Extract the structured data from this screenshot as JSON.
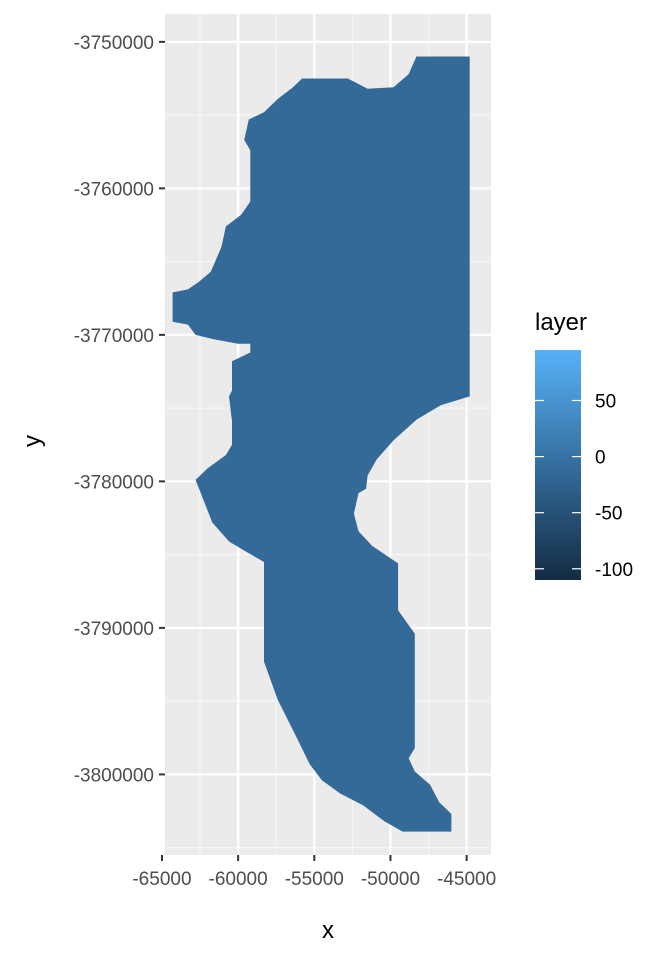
{
  "chart_data": {
    "type": "heatmap",
    "title": "",
    "xlabel": "x",
    "ylabel": "y",
    "xlim": [
      -64800,
      -43400
    ],
    "ylim": [
      -3805500,
      -3748100
    ],
    "x_ticks": [
      -65000,
      -60000,
      -55000,
      -50000,
      -45000
    ],
    "x_tick_labels": [
      "-65000",
      "-60000",
      "-55000",
      "-50000",
      "-45000"
    ],
    "y_ticks": [
      -3750000,
      -3760000,
      -3770000,
      -3780000,
      -3790000,
      -3800000
    ],
    "y_tick_labels": [
      "-3750000",
      "-3760000",
      "-3770000",
      "-3780000",
      "-3790000",
      "-3800000"
    ],
    "grid": true,
    "panel_background": "#ebebeb",
    "fill_color": "#336a98",
    "legend": {
      "title": "layer",
      "position": "right",
      "colors": [
        "#132b43",
        "#56b1f7"
      ],
      "range": [
        -110,
        95
      ],
      "breaks": [
        50,
        0,
        -50,
        -100
      ],
      "labels": [
        "50",
        "0",
        "-50",
        "-100"
      ]
    },
    "region_outline": [
      [
        -55800,
        -3752500
      ],
      [
        -52800,
        -3752500
      ],
      [
        -51500,
        -3753200
      ],
      [
        -49800,
        -3753100
      ],
      [
        -48800,
        -3752200
      ],
      [
        -48300,
        -3751000
      ],
      [
        -44800,
        -3751000
      ],
      [
        -44800,
        -3774200
      ],
      [
        -46700,
        -3774800
      ],
      [
        -48300,
        -3775800
      ],
      [
        -49800,
        -3777200
      ],
      [
        -50900,
        -3778500
      ],
      [
        -51500,
        -3779600
      ],
      [
        -51600,
        -3780500
      ],
      [
        -52100,
        -3780800
      ],
      [
        -52400,
        -3782200
      ],
      [
        -52100,
        -3783400
      ],
      [
        -51200,
        -3784400
      ],
      [
        -49500,
        -3785600
      ],
      [
        -49500,
        -3788800
      ],
      [
        -48400,
        -3790400
      ],
      [
        -48400,
        -3798200
      ],
      [
        -48800,
        -3798900
      ],
      [
        -48400,
        -3799800
      ],
      [
        -47400,
        -3800700
      ],
      [
        -46800,
        -3801900
      ],
      [
        -46000,
        -3802700
      ],
      [
        -46000,
        -3803900
      ],
      [
        -49200,
        -3803900
      ],
      [
        -50400,
        -3803200
      ],
      [
        -51800,
        -3802100
      ],
      [
        -53300,
        -3801300
      ],
      [
        -54500,
        -3800400
      ],
      [
        -55300,
        -3799300
      ],
      [
        -56200,
        -3797400
      ],
      [
        -57400,
        -3794900
      ],
      [
        -58300,
        -3792300
      ],
      [
        -58300,
        -3785500
      ],
      [
        -59300,
        -3784900
      ],
      [
        -60600,
        -3784100
      ],
      [
        -61700,
        -3782800
      ],
      [
        -62600,
        -3780400
      ],
      [
        -62800,
        -3779900
      ],
      [
        -62000,
        -3779100
      ],
      [
        -60800,
        -3778200
      ],
      [
        -60400,
        -3777500
      ],
      [
        -60400,
        -3775900
      ],
      [
        -60600,
        -3774200
      ],
      [
        -60400,
        -3773800
      ],
      [
        -60400,
        -3771800
      ],
      [
        -59200,
        -3771200
      ],
      [
        -59200,
        -3770600
      ],
      [
        -60000,
        -3770600
      ],
      [
        -61600,
        -3770300
      ],
      [
        -62800,
        -3770000
      ],
      [
        -63300,
        -3769300
      ],
      [
        -64300,
        -3769100
      ],
      [
        -64300,
        -3767100
      ],
      [
        -63300,
        -3766900
      ],
      [
        -62600,
        -3766400
      ],
      [
        -61800,
        -3765700
      ],
      [
        -61100,
        -3764000
      ],
      [
        -60800,
        -3762600
      ],
      [
        -59800,
        -3761800
      ],
      [
        -59200,
        -3760900
      ],
      [
        -59200,
        -3757400
      ],
      [
        -59600,
        -3756700
      ],
      [
        -59300,
        -3755300
      ],
      [
        -58300,
        -3754800
      ],
      [
        -57400,
        -3753900
      ],
      [
        -56400,
        -3753100
      ]
    ]
  }
}
